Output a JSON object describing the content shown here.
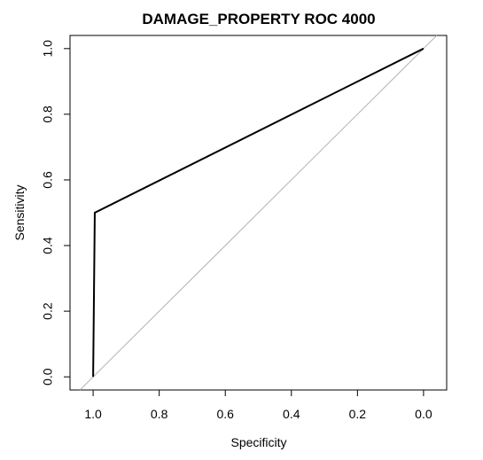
{
  "chart_data": {
    "type": "line",
    "title": "DAMAGE_PROPERTY ROC  4000",
    "xlabel": "Specificity",
    "ylabel": "Sensitivity",
    "x_reversed": true,
    "xlim": [
      1.07,
      -0.07
    ],
    "ylim": [
      -0.04,
      1.04
    ],
    "x_ticks": [
      1.0,
      0.8,
      0.6,
      0.4,
      0.2,
      0.0
    ],
    "x_tick_labels": [
      "1.0",
      "0.8",
      "0.6",
      "0.4",
      "0.2",
      "0.0"
    ],
    "y_ticks": [
      0.0,
      0.2,
      0.4,
      0.6,
      0.8,
      1.0
    ],
    "y_tick_labels": [
      "0.0",
      "0.2",
      "0.4",
      "0.6",
      "0.8",
      "1.0"
    ],
    "grid": false,
    "reference_line": {
      "x": [
        1.0,
        0.0
      ],
      "y": [
        0.0,
        1.0
      ],
      "color": "#b3b3b3"
    },
    "series": [
      {
        "x": [
          1.0,
          0.995,
          0.0
        ],
        "y": [
          0.0,
          0.5,
          1.0
        ],
        "color": "#000000"
      }
    ]
  }
}
